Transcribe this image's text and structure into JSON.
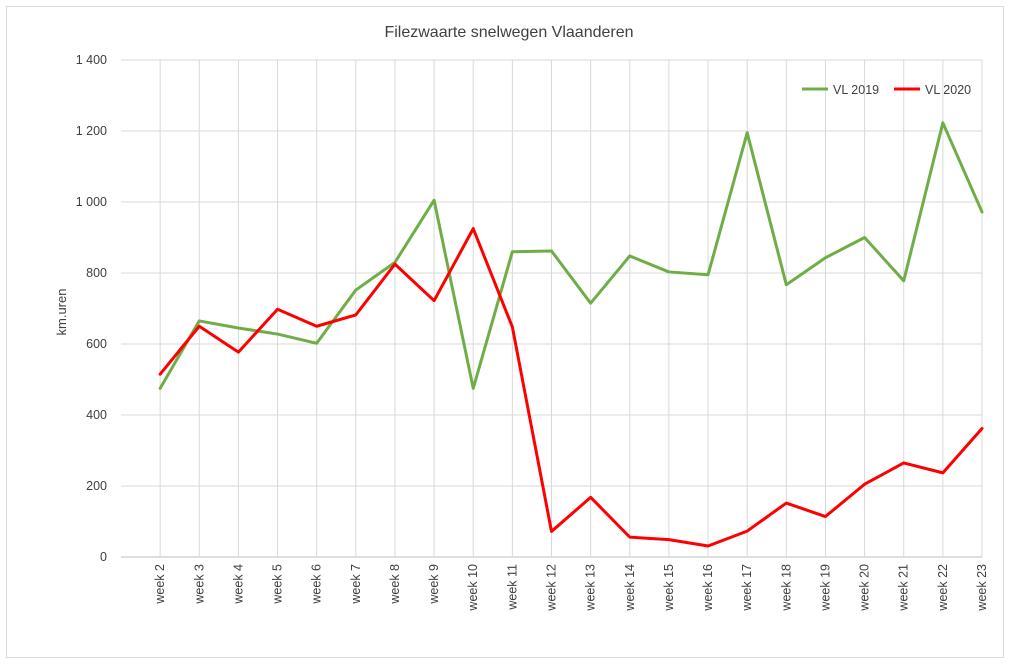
{
  "chart_data": {
    "type": "line",
    "title": "Filezwaarte snelwegen Vlaanderen",
    "xlabel": "",
    "ylabel": "km.uren",
    "ylim": [
      0,
      1400
    ],
    "yticks": [
      0,
      200,
      400,
      600,
      800,
      1000,
      1200,
      1400
    ],
    "ytick_labels": [
      "0",
      "200",
      "400",
      "600",
      "800",
      "1 000",
      "1 200",
      "1 400"
    ],
    "grid": "vertical and horizontal",
    "legend_position": "top-right",
    "categories": [
      "week 2",
      "week 3",
      "week 4",
      "week 5",
      "week 6",
      "week 7",
      "week 8",
      "week 9",
      "week 10",
      "week 11",
      "week 12",
      "week 13",
      "week 14",
      "week 15",
      "week 16",
      "week 17",
      "week 18",
      "week 19",
      "week 20",
      "week 21",
      "week 22",
      "week 23"
    ],
    "series": [
      {
        "name": "VL 2019",
        "color": "#70ad47",
        "values": [
          475,
          665,
          645,
          628,
          602,
          752,
          830,
          1005,
          475,
          860,
          862,
          715,
          848,
          803,
          795,
          1195,
          767,
          843,
          900,
          778,
          1223,
          972
        ]
      },
      {
        "name": "VL 2020",
        "color": "#ff0000",
        "values": [
          515,
          650,
          577,
          698,
          650,
          682,
          825,
          722,
          925,
          648,
          72,
          168,
          56,
          49,
          31,
          73,
          152,
          114,
          205,
          265,
          237,
          362
        ]
      }
    ]
  }
}
